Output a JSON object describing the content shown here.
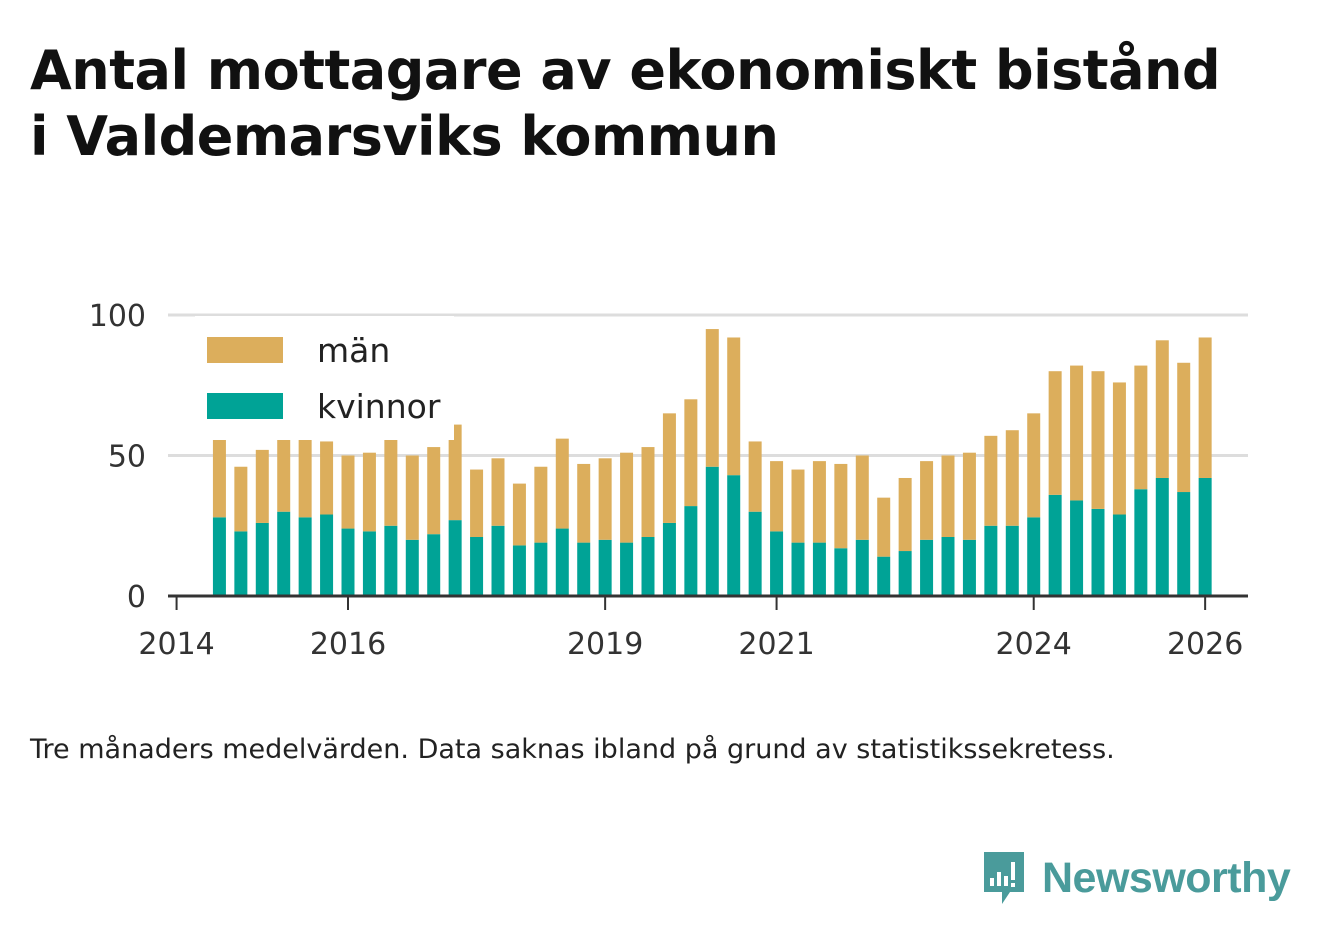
{
  "title_line1": "Antal mottagare av ekonomiskt bistånd",
  "title_line2": "i Valdemarsviks kommun",
  "caption": "Tre månaders medelvärden. Data saknas ibland på grund av statistikssekretess.",
  "brand": "Newsworthy",
  "colors": {
    "man": "#dcae5c",
    "kvinnor": "#00a396",
    "axis": "#333333",
    "grid": "#dddddd",
    "brand": "#4a9b9b"
  },
  "chart_data": {
    "type": "bar",
    "stacked": true,
    "title": "Antal mottagare av ekonomiskt bistånd i Valdemarsviks kommun",
    "xlabel": "",
    "ylabel": "",
    "ylim": [
      0,
      100
    ],
    "yticks": [
      0,
      50,
      100
    ],
    "x_range": [
      2013.9,
      2026.5
    ],
    "xticks": [
      2014,
      2016,
      2019,
      2021,
      2024,
      2026
    ],
    "x_tick_labels": [
      "2014",
      "2016",
      "2019",
      "2021",
      "2024",
      "2026"
    ],
    "legend": {
      "position": "top-left",
      "entries": [
        "män",
        "kvinnor"
      ]
    },
    "x": [
      2014.5,
      2014.75,
      2015.0,
      2015.25,
      2015.5,
      2015.75,
      2016.0,
      2016.25,
      2016.5,
      2016.75,
      2017.0,
      2017.25,
      2017.5,
      2017.75,
      2018.0,
      2018.25,
      2018.5,
      2018.75,
      2019.0,
      2019.25,
      2019.5,
      2019.75,
      2020.0,
      2020.25,
      2020.5,
      2020.75,
      2021.0,
      2021.25,
      2021.5,
      2021.75,
      2022.0,
      2022.25,
      2022.5,
      2022.75,
      2023.0,
      2023.25,
      2023.5,
      2023.75,
      2024.0,
      2024.25,
      2024.5,
      2024.75,
      2025.0,
      2025.25,
      2025.5,
      2025.75,
      2026.0
    ],
    "series": [
      {
        "name": "kvinnor",
        "values": [
          28,
          23,
          26,
          30,
          28,
          29,
          24,
          23,
          25,
          20,
          22,
          27,
          21,
          25,
          18,
          19,
          24,
          19,
          20,
          19,
          21,
          26,
          32,
          46,
          43,
          30,
          23,
          19,
          19,
          17,
          20,
          14,
          16,
          20,
          21,
          20,
          25,
          25,
          28,
          36,
          34,
          31,
          29,
          38,
          42,
          37,
          42
        ]
      },
      {
        "name": "män",
        "values": [
          28,
          23,
          26,
          26,
          28,
          26,
          26,
          28,
          31,
          30,
          31,
          34,
          24,
          24,
          22,
          27,
          32,
          28,
          29,
          32,
          32,
          39,
          38,
          49,
          49,
          25,
          25,
          26,
          29,
          30,
          30,
          21,
          26,
          28,
          29,
          31,
          32,
          34,
          37,
          44,
          48,
          49,
          47,
          44,
          49,
          46,
          50
        ]
      }
    ]
  }
}
